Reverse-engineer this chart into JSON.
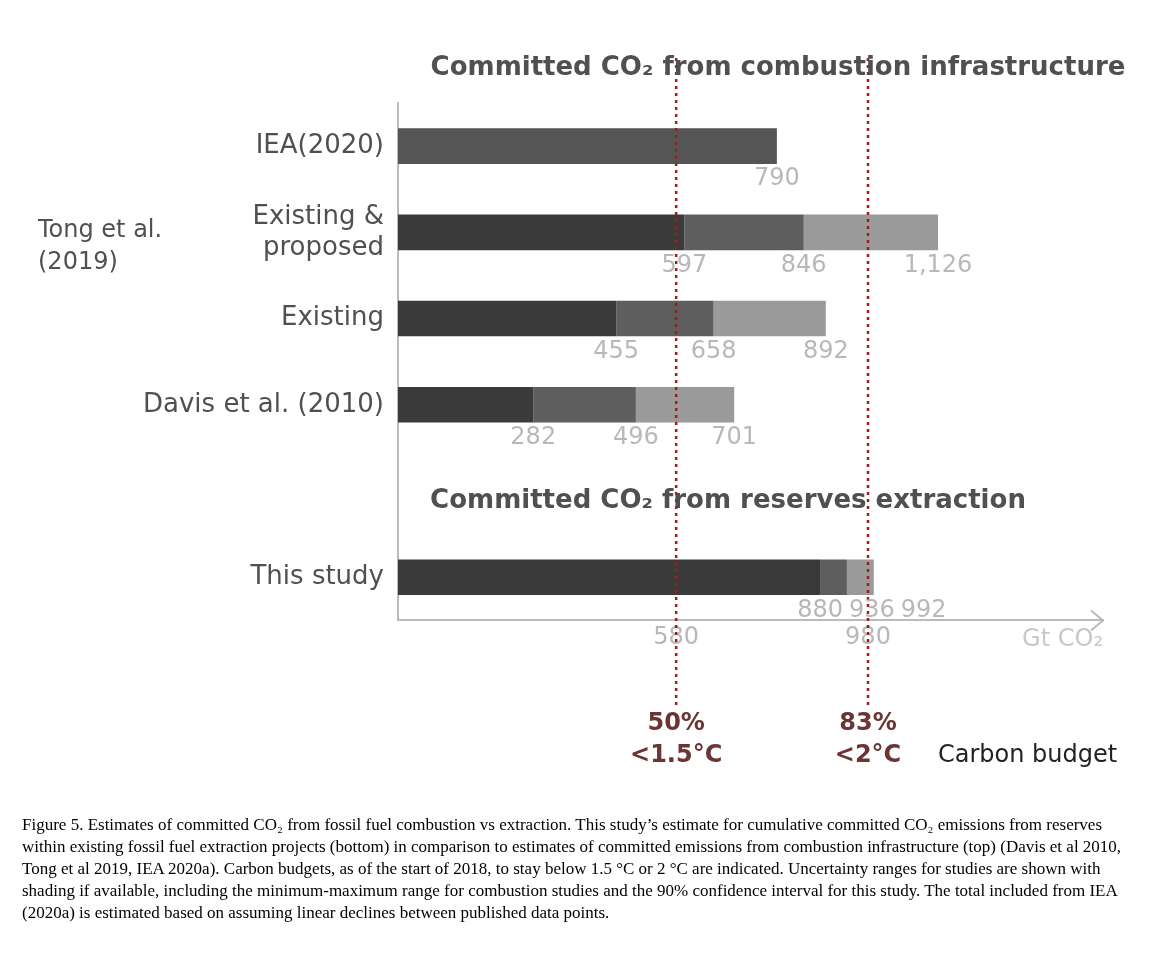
{
  "chart_data": {
    "type": "bar",
    "orientation": "horizontal",
    "stacked": true,
    "categories": [
      "IEA(2020)",
      "Existing &\nproposed",
      "Existing",
      "Davis et al. (2010)",
      null,
      "This study"
    ],
    "series": [
      {
        "color": "#3a3a3a",
        "colors": [
          "#555555",
          null,
          null,
          null,
          null,
          null
        ],
        "values": [
          790,
          597,
          455,
          282,
          null,
          880
        ]
      },
      {
        "color": "#5e5e5e",
        "values": [
          null,
          249,
          203,
          214,
          null,
          56
        ]
      },
      {
        "color": "#9a9a9a",
        "values": [
          null,
          280,
          234,
          205,
          null,
          56
        ]
      }
    ],
    "xlim": [
      0,
      1470
    ],
    "xticks": [
      580,
      980
    ],
    "xlabel": "Gt CO₂",
    "ref_lines": [
      {
        "axis": "x",
        "value": 580,
        "label": "50%\n<1.5°C",
        "color": "#a01c1c",
        "line_style": "dotted"
      },
      {
        "axis": "x",
        "value": 980,
        "label": "83%\n<2°C",
        "color": "#a01c1c",
        "line_style": "dotted"
      }
    ],
    "legend": false,
    "grid": false,
    "annotations": [
      "Committed CO₂ from combustion infrastructure",
      "Committed CO₂ from reserves extraction",
      "Tong et al.\n(2019)",
      "Carbon budget",
      "Figure 5. Estimates of committed CO₂ from fossil fuel combustion vs extraction. This study’s estimate for cumulative committed CO₂ emissions from reserves within existing fossil fuel extraction projects (bottom) in comparison to estimates of committed emissions from combustion infrastructure (top) (Davis et al 2010, Tong et al 2019, IEA 2020a). Carbon budgets, as of the start of 2018, to stay below 1.5 °C or 2 °C are indicated. Uncertainty ranges for studies are shown with shading if available, including the minimum-maximum range for combustion studies and the 90% confidence interval for this study. The total included from IEA (2020a) is estimated based on assuming linear declines between published data points.",
      {
        "text": "790",
        "x": 790,
        "y": "IEA(2020)"
      },
      {
        "text": "597",
        "x": 597,
        "y": "Existing &\nproposed"
      },
      {
        "text": "846",
        "x": 846,
        "y": "Existing &\nproposed"
      },
      {
        "text": "1,126",
        "x": 1126,
        "y": "Existing &\nproposed"
      },
      {
        "text": "455",
        "x": 455,
        "y": "Existing"
      },
      {
        "text": "658",
        "x": 658,
        "y": "Existing"
      },
      {
        "text": "892",
        "x": 892,
        "y": "Existing"
      },
      {
        "text": "282",
        "x": 282,
        "y": "Davis et al. (2010)"
      },
      {
        "text": "496",
        "x": 496,
        "y": "Davis et al. (2010)"
      },
      {
        "text": "701",
        "x": 701,
        "y": "Davis et al. (2010)"
      },
      {
        "text": "880",
        "x": 880,
        "y": "This study"
      },
      {
        "text": "936",
        "x": 936,
        "y": "This study"
      },
      {
        "text": "992",
        "x": 992,
        "y": "This study"
      }
    ]
  }
}
